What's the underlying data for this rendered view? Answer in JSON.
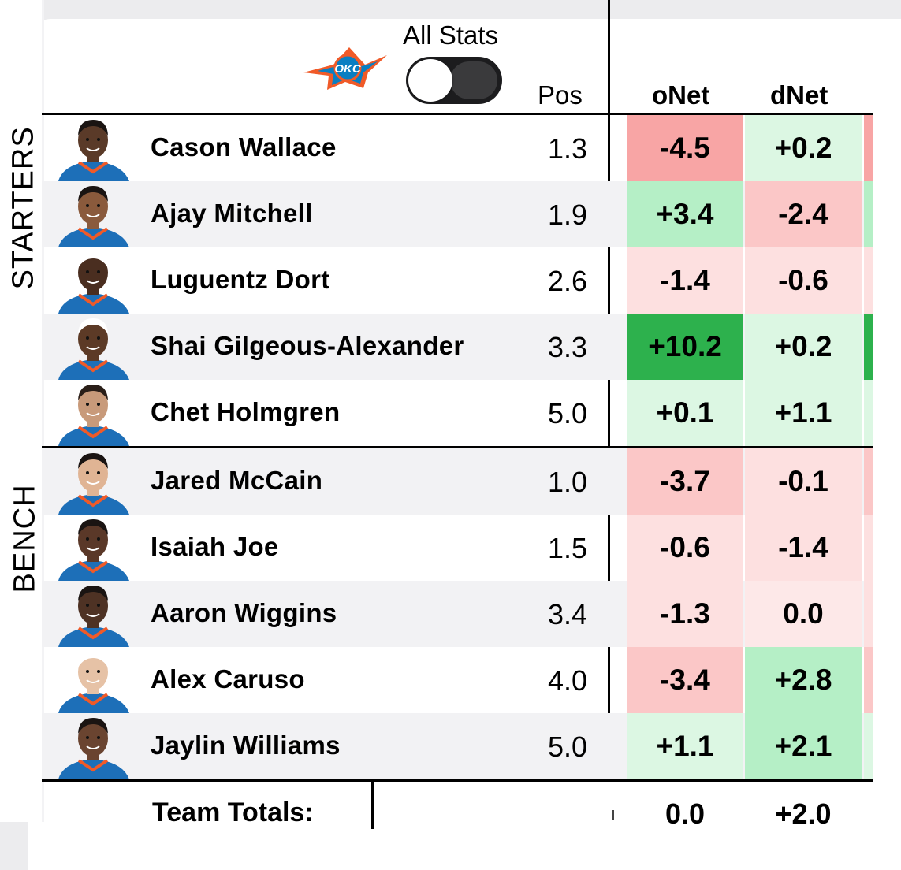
{
  "header": {
    "team_logo": "okc-logo",
    "toggle_label": "All Stats",
    "toggle_on": false,
    "columns": {
      "pos": "Pos",
      "onet": "oNet",
      "dnet": "dNet"
    }
  },
  "sections": {
    "starters": "STARTERS",
    "bench": "BENCH"
  },
  "colors": {
    "neg_strong": "#f8a5a5",
    "neg_mid": "#fbc7c7",
    "neg_light": "#fde0e0",
    "pos_strong": "#2db14d",
    "pos_mid": "#b5efc6",
    "pos_light": "#dcf7e3",
    "neutral": "#fde8e8"
  },
  "players": [
    {
      "name": "Cason Wallace",
      "pos": "1.3",
      "onet": "-4.5",
      "dnet": "+0.2"
    },
    {
      "name": "Ajay Mitchell",
      "pos": "1.9",
      "onet": "+3.4",
      "dnet": "-2.4"
    },
    {
      "name": "Luguentz Dort",
      "pos": "2.6",
      "onet": "-1.4",
      "dnet": "-0.6"
    },
    {
      "name": "Shai Gilgeous-Alexander",
      "pos": "3.3",
      "onet": "+10.2",
      "dnet": "+0.2"
    },
    {
      "name": "Chet Holmgren",
      "pos": "5.0",
      "onet": "+0.1",
      "dnet": "+1.1"
    },
    {
      "name": "Jared McCain",
      "pos": "1.0",
      "onet": "-3.7",
      "dnet": "-0.1"
    },
    {
      "name": "Isaiah Joe",
      "pos": "1.5",
      "onet": "-0.6",
      "dnet": "-1.4"
    },
    {
      "name": "Aaron Wiggins",
      "pos": "3.4",
      "onet": "-1.3",
      "dnet": "0.0"
    },
    {
      "name": "Alex Caruso",
      "pos": "4.0",
      "onet": "-3.4",
      "dnet": "+2.8"
    },
    {
      "name": "Jaylin Williams",
      "pos": "5.0",
      "onet": "+1.1",
      "dnet": "+2.1"
    }
  ],
  "totals": {
    "label": "Team Totals:",
    "onet": "0.0",
    "dnet": "+2.0"
  }
}
